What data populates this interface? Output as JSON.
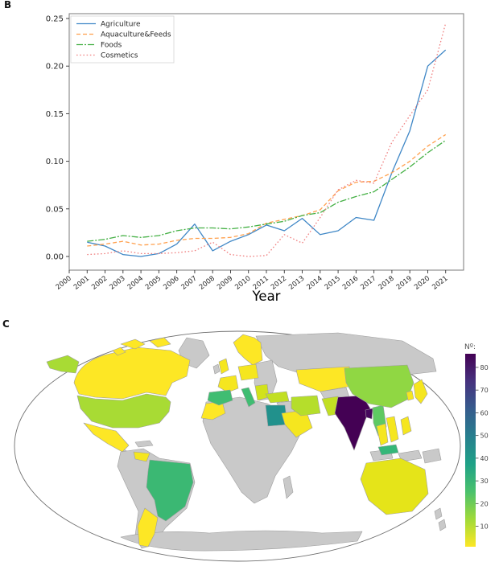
{
  "panels": {
    "b": "B",
    "c": "C"
  },
  "chart_data": [
    {
      "panel": "B",
      "type": "line",
      "title": "",
      "xlabel": "Year",
      "ylabel": "",
      "xlim": [
        2000,
        2022
      ],
      "ylim": [
        0.0,
        0.25
      ],
      "grid": false,
      "legend_position": "upper left",
      "x_ticks": [
        2000,
        2001,
        2002,
        2003,
        2004,
        2005,
        2006,
        2007,
        2008,
        2009,
        2010,
        2011,
        2012,
        2013,
        2014,
        2015,
        2016,
        2017,
        2018,
        2019,
        2020,
        2021
      ],
      "y_tick_labels": [
        "0.00",
        "0.05",
        "0.10",
        "0.15",
        "0.20",
        "0.25"
      ],
      "y_tick_values": [
        0.0,
        0.05,
        0.1,
        0.15,
        0.2,
        0.25
      ],
      "x": [
        2001,
        2002,
        2003,
        2004,
        2005,
        2006,
        2007,
        2008,
        2009,
        2010,
        2011,
        2012,
        2013,
        2014,
        2015,
        2016,
        2017,
        2018,
        2019,
        2020,
        2021
      ],
      "series": [
        {
          "name": "Agriculture",
          "color": "#3f87c6",
          "style": "solid",
          "values": [
            0.015,
            0.011,
            0.002,
            0.0,
            0.003,
            0.013,
            0.034,
            0.006,
            0.016,
            0.023,
            0.033,
            0.027,
            0.04,
            0.023,
            0.027,
            0.041,
            0.038,
            0.088,
            0.132,
            0.2,
            0.217
          ]
        },
        {
          "name": "Aquaculture&Feeds",
          "color": "#ffa04d",
          "style": "dashed",
          "values": [
            0.011,
            0.013,
            0.016,
            0.012,
            0.013,
            0.017,
            0.019,
            0.019,
            0.02,
            0.024,
            0.035,
            0.039,
            0.043,
            0.049,
            0.069,
            0.078,
            0.079,
            0.088,
            0.1,
            0.116,
            0.128
          ]
        },
        {
          "name": "Foods",
          "color": "#44b044",
          "style": "dashdot",
          "values": [
            0.016,
            0.018,
            0.022,
            0.02,
            0.022,
            0.027,
            0.03,
            0.03,
            0.029,
            0.031,
            0.034,
            0.037,
            0.043,
            0.046,
            0.057,
            0.063,
            0.068,
            0.081,
            0.094,
            0.109,
            0.122
          ]
        },
        {
          "name": "Cosmetics",
          "color": "#f08080",
          "style": "dotted",
          "values": [
            0.002,
            0.003,
            0.006,
            0.003,
            0.003,
            0.004,
            0.006,
            0.015,
            0.002,
            0.0,
            0.001,
            0.023,
            0.014,
            0.041,
            0.07,
            0.08,
            0.077,
            0.12,
            0.148,
            0.175,
            0.245
          ]
        }
      ]
    },
    {
      "panel": "C",
      "type": "choropleth",
      "projection": "robinson-like world map",
      "colorbar": {
        "label": "Nº:",
        "ticks": [
          80,
          70,
          60,
          50,
          40,
          30,
          20,
          10
        ],
        "vmin": 1,
        "vmax": 86,
        "colormap": "viridis reversed (yellow = low, dark purple = high)",
        "gradient_top_to_bottom": [
          "#440154",
          "#46327e",
          "#365c8d",
          "#277f8e",
          "#1fa187",
          "#4ac16d",
          "#a0da39",
          "#fde725"
        ]
      },
      "no_data_color": "#c9c9c9",
      "countries": [
        {
          "id": "india",
          "name": "India",
          "value": 86,
          "color": "#440154"
        },
        {
          "id": "bangladesh",
          "name": "Bangladesh",
          "value": 80,
          "color": "#46085c"
        },
        {
          "id": "egypt",
          "name": "Egypt",
          "value": 45,
          "color": "#21918c"
        },
        {
          "id": "malaysia",
          "name": "Malaysia",
          "value": 29,
          "color": "#35b779"
        },
        {
          "id": "brazil",
          "name": "Brazil",
          "value": 27,
          "color": "#3bb873"
        },
        {
          "id": "spain",
          "name": "Spain",
          "value": 26,
          "color": "#40bd72"
        },
        {
          "id": "italy",
          "name": "Italy",
          "value": 26,
          "color": "#40bd72"
        },
        {
          "id": "myanmar",
          "name": "Myanmar",
          "value": 22,
          "color": "#5ec962"
        },
        {
          "id": "china",
          "name": "China",
          "value": 14,
          "color": "#90d743"
        },
        {
          "id": "usa",
          "name": "United States",
          "value": 12,
          "color": "#a8db34"
        },
        {
          "id": "iran",
          "name": "Iran",
          "value": 10,
          "color": "#b5de2b"
        },
        {
          "id": "pakistan",
          "name": "Pakistan",
          "value": 8,
          "color": "#c2df23"
        },
        {
          "id": "turkey",
          "name": "Turkey",
          "value": 8,
          "color": "#c2df23"
        },
        {
          "id": "greece",
          "name": "Greece",
          "value": 6,
          "color": "#d2e21b"
        },
        {
          "id": "australia",
          "name": "Australia",
          "value": 5,
          "color": "#e5e419"
        },
        {
          "id": "france",
          "name": "France",
          "value": 3,
          "color": "#f5e61f"
        },
        {
          "id": "germany",
          "name": "Germany",
          "value": 3,
          "color": "#f5e61f"
        },
        {
          "id": "uk",
          "name": "United Kingdom",
          "value": 3,
          "color": "#f5e61f"
        },
        {
          "id": "venezuela",
          "name": "Venezuela",
          "value": 3,
          "color": "#f5e61f"
        },
        {
          "id": "saudi",
          "name": "Saudi Arabia",
          "value": 3,
          "color": "#f5e61f"
        },
        {
          "id": "japan",
          "name": "Japan",
          "value": 3,
          "color": "#f5e61f"
        },
        {
          "id": "skorea",
          "name": "South Korea",
          "value": 3,
          "color": "#f5e61f"
        },
        {
          "id": "philippines",
          "name": "Philippines",
          "value": 3,
          "color": "#f5e61f"
        },
        {
          "id": "thailand",
          "name": "Thailand",
          "value": 3,
          "color": "#f5e61f"
        },
        {
          "id": "vietnam",
          "name": "Vietnam",
          "value": 3,
          "color": "#f5e61f"
        },
        {
          "id": "canada",
          "name": "Canada",
          "value": 2,
          "color": "#fde725"
        },
        {
          "id": "mexico",
          "name": "Mexico",
          "value": 2,
          "color": "#fde725"
        },
        {
          "id": "argentina",
          "name": "Argentina",
          "value": 2,
          "color": "#fde725"
        },
        {
          "id": "morocco",
          "name": "Morocco",
          "value": 2,
          "color": "#fde725"
        },
        {
          "id": "kazakhstan",
          "name": "Kazakhstan",
          "value": 2,
          "color": "#fde725"
        },
        {
          "id": "scandinavia",
          "name": "Norway/Sweden/Finland",
          "value": 2,
          "color": "#fde725"
        },
        {
          "id": "poland",
          "name": "Poland",
          "value": 2,
          "color": "#fde725"
        }
      ]
    }
  ]
}
